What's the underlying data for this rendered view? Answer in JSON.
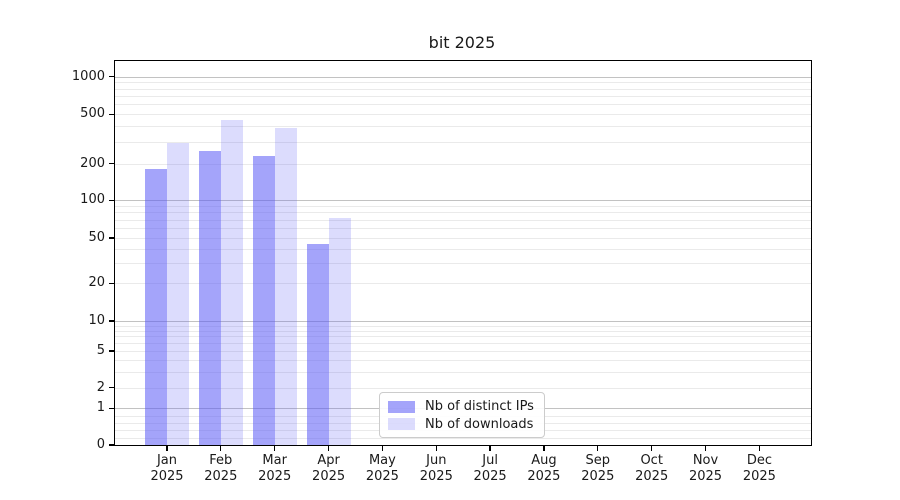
{
  "title": "bit 2025",
  "chart_data": {
    "type": "bar",
    "title": "bit 2025",
    "categories": [
      "Jan 2025",
      "Feb 2025",
      "Mar 2025",
      "Apr 2025",
      "May 2025",
      "Jun 2025",
      "Jul 2025",
      "Aug 2025",
      "Sep 2025",
      "Oct 2025",
      "Nov 2025",
      "Dec 2025"
    ],
    "series": [
      {
        "name": "Nb of distinct IPs",
        "color": "rgba(90,90,245,0.55)",
        "solid_color": "#a4a4fa",
        "values": [
          180,
          255,
          230,
          44,
          null,
          null,
          null,
          null,
          null,
          null,
          null,
          null
        ]
      },
      {
        "name": "Nb of downloads",
        "color": "rgba(90,90,245,0.21)",
        "solid_color": "#dcdcfd",
        "values": [
          295,
          450,
          390,
          72,
          null,
          null,
          null,
          null,
          null,
          null,
          null,
          null
        ]
      }
    ],
    "yscale": "symlog",
    "ylim": [
      0,
      1350
    ],
    "ytick_labels": [
      "0",
      "1",
      "2",
      "5",
      "10",
      "20",
      "50",
      "100",
      "200",
      "500",
      "1000"
    ],
    "yticks": [
      0,
      1,
      2,
      5,
      10,
      20,
      50,
      100,
      200,
      500,
      1000
    ],
    "grid": true,
    "legend_position": "lower center"
  },
  "legend": {
    "items": [
      {
        "label": "Nb of distinct IPs",
        "swatch": "rgba(90,90,245,0.55)"
      },
      {
        "label": "Nb of downloads",
        "swatch": "rgba(90,90,245,0.21)"
      }
    ]
  }
}
